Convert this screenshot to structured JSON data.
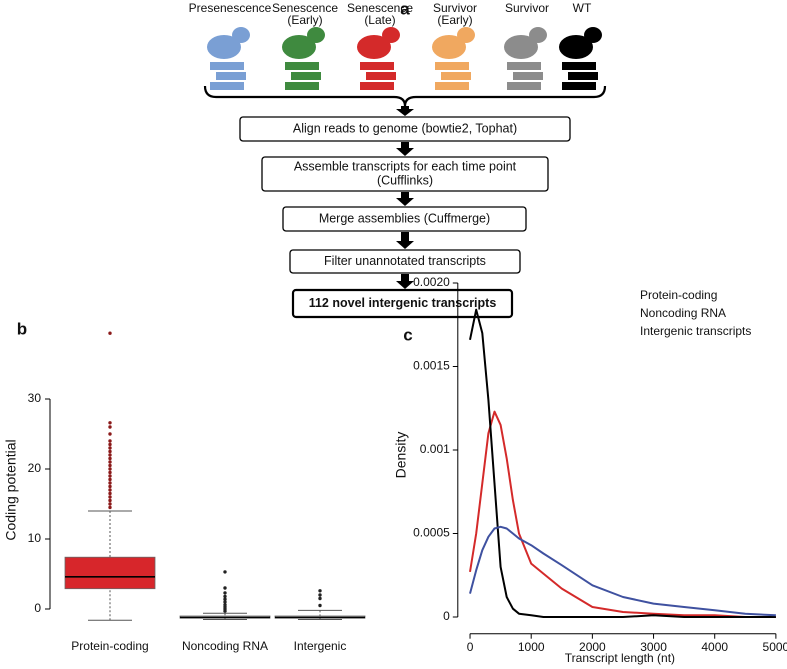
{
  "panels": {
    "a": "a",
    "b": "b",
    "c": "c"
  },
  "diagram": {
    "samples": [
      {
        "label": [
          "Presenescence"
        ],
        "color": "#7a9fd4"
      },
      {
        "label": [
          "Senescence",
          "(Early)"
        ],
        "color": "#3f8a3f"
      },
      {
        "label": [
          "Senescence",
          "(Late)"
        ],
        "color": "#d42a2a"
      },
      {
        "label": [
          "Survivor",
          "(Early)"
        ],
        "color": "#f0a860"
      },
      {
        "label": [
          "Survivor"
        ],
        "color": "#8c8c8c"
      },
      {
        "label": [
          "WT"
        ],
        "color": "#000000"
      }
    ],
    "steps": [
      {
        "lines": [
          "Align reads to genome (bowtie2, Tophat)"
        ],
        "bold": false
      },
      {
        "lines": [
          "Assemble transcripts for each time point",
          "(Cufflinks)"
        ],
        "bold": false
      },
      {
        "lines": [
          "Merge assemblies (Cuffmerge)"
        ],
        "bold": false
      },
      {
        "lines": [
          "Filter unannotated transcripts"
        ],
        "bold": false
      },
      {
        "lines": [
          "112 novel intergenic transcripts"
        ],
        "bold": true
      }
    ]
  },
  "chart_data": [
    {
      "type": "box",
      "y_label": "Coding potential",
      "categories": [
        "Protein-coding",
        "Noncoding RNA",
        "Intergenic"
      ],
      "boxes": [
        {
          "low": -1.6,
          "q1": 2.9,
          "median": 4.6,
          "q3": 7.4,
          "high": 14,
          "color": "#d7262b",
          "outliers": [
            14.5,
            15,
            15.5,
            16,
            16.5,
            17,
            17.5,
            18,
            18.5,
            19,
            19.5,
            20,
            20.5,
            21,
            21.5,
            22,
            22.5,
            23,
            23.5,
            24,
            25,
            26,
            26.6,
            39.4
          ]
        },
        {
          "low": -1.5,
          "q1": -1.3,
          "median": -1.2,
          "q3": -1.0,
          "high": -0.6,
          "color": "#ffffff",
          "outliers": [
            -0.3,
            0,
            0.3,
            0.6,
            1,
            1.4,
            1.8,
            2.3,
            3,
            5.3
          ]
        },
        {
          "low": -1.5,
          "q1": -1.3,
          "median": -1.2,
          "q3": -1.0,
          "high": -0.2,
          "color": "#ffffff",
          "outliers": [
            0.5,
            1.5,
            2,
            2.6
          ]
        }
      ],
      "ylim": [
        -2.5,
        40
      ],
      "yticks": [
        0,
        10,
        20,
        30
      ]
    },
    {
      "type": "line",
      "x_label": "Transcript length (nt)",
      "y_label": "Density",
      "x": [
        0,
        100,
        200,
        300,
        400,
        500,
        600,
        700,
        800,
        1000,
        1200,
        1500,
        2000,
        2500,
        3000,
        3500,
        4000,
        4500,
        5000
      ],
      "series": [
        {
          "name": "Protein-coding",
          "color": "#d42a2a",
          "values": [
            0.00027,
            0.0005,
            0.0008,
            0.0011,
            0.00123,
            0.00115,
            0.00095,
            0.0007,
            0.0005,
            0.00032,
            0.00026,
            0.00017,
            6e-05,
            3e-05,
            2e-05,
            1e-05,
            1e-05,
            0,
            0
          ]
        },
        {
          "name": "Noncoding RNA",
          "color": "#000000",
          "values": [
            0.00166,
            0.00184,
            0.0017,
            0.0013,
            0.0008,
            0.0003,
            0.00012,
            5e-05,
            2e-05,
            1e-05,
            0,
            0,
            0,
            0,
            1e-05,
            0,
            0,
            0,
            0
          ]
        },
        {
          "name": "Intergenic transcripts",
          "color": "#3f51a0",
          "values": [
            0.00014,
            0.00028,
            0.0004,
            0.00048,
            0.00053,
            0.00054,
            0.00053,
            0.0005,
            0.00047,
            0.00043,
            0.00038,
            0.00031,
            0.00019,
            0.00012,
            8e-05,
            6e-05,
            4e-05,
            2e-05,
            1e-05
          ]
        }
      ],
      "xlim": [
        -200,
        5100
      ],
      "xticks": [
        0,
        1000,
        2000,
        3000,
        4000,
        5000
      ],
      "ylim": [
        -0.0001,
        0.00205
      ],
      "yticks": [
        0,
        0.0005,
        0.001,
        0.0015,
        {
          "value": 0.002,
          "label": "0.0020"
        }
      ],
      "legend": "top-right"
    }
  ]
}
